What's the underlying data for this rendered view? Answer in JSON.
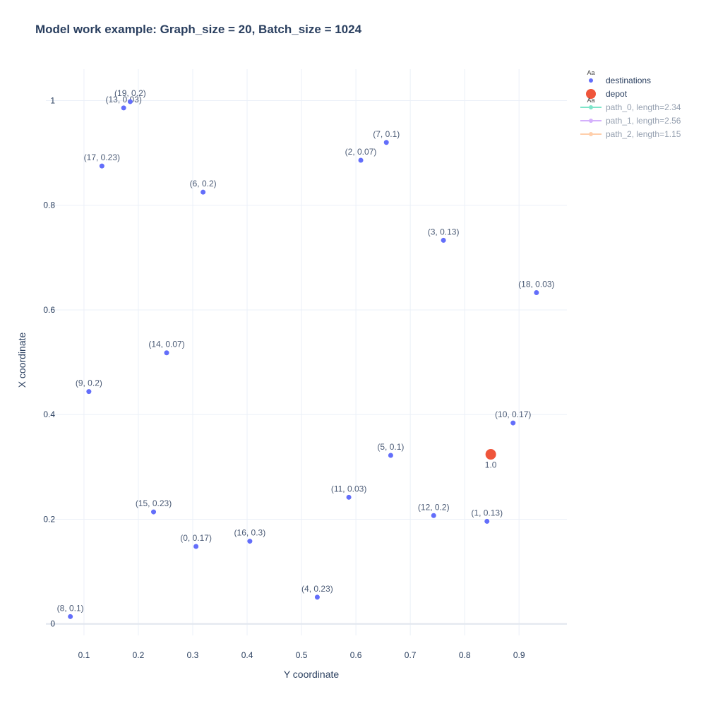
{
  "title": "Model work example: Graph_size = 20, Batch_size = 1024",
  "colors": {
    "destinations": "#636efa",
    "depot": "#ef553b",
    "path_0": "#00cc96",
    "path_1": "#ab63fa",
    "path_2": "#ffa15a",
    "grid": "#ebf0f8",
    "text": "#2a3f5f"
  },
  "chart_data": {
    "type": "scatter",
    "title": "Model work example: Graph_size = 20, Batch_size = 1024",
    "xlabel": "Y coordinate",
    "ylabel": "X coordinate",
    "xlim": [
      0.03,
      0.988
    ],
    "ylim": [
      -0.022,
      1.06
    ],
    "x_ticks": [
      0.1,
      0.2,
      0.3,
      0.4,
      0.5,
      0.6,
      0.7,
      0.8,
      0.9
    ],
    "x_tick_labels": [
      "0.1",
      "0.2",
      "0.3",
      "0.4",
      "0.5",
      "0.6",
      "0.7",
      "0.8",
      "0.9"
    ],
    "y_ticks": [
      0,
      0.2,
      0.4,
      0.6,
      0.8,
      1
    ],
    "y_tick_labels": [
      "0",
      "0.2",
      "0.4",
      "0.6",
      "0.8",
      "1"
    ],
    "grid": true,
    "legend_position": "top-right",
    "series": [
      {
        "name": "destinations",
        "points": [
          {
            "x": 0.306,
            "y": 0.148,
            "label": "(0, 0.17)"
          },
          {
            "x": 0.841,
            "y": 0.196,
            "label": "(1, 0.13)"
          },
          {
            "x": 0.609,
            "y": 0.886,
            "label": "(2, 0.07)"
          },
          {
            "x": 0.761,
            "y": 0.733,
            "label": "(3, 0.13)"
          },
          {
            "x": 0.529,
            "y": 0.051,
            "label": "(4, 0.23)"
          },
          {
            "x": 0.664,
            "y": 0.322,
            "label": "(5, 0.1)"
          },
          {
            "x": 0.319,
            "y": 0.825,
            "label": "(6, 0.2)"
          },
          {
            "x": 0.656,
            "y": 0.92,
            "label": "(7, 0.1)"
          },
          {
            "x": 0.075,
            "y": 0.014,
            "label": "(8, 0.1)"
          },
          {
            "x": 0.109,
            "y": 0.444,
            "label": "(9, 0.2)"
          },
          {
            "x": 0.889,
            "y": 0.384,
            "label": "(10, 0.17)"
          },
          {
            "x": 0.587,
            "y": 0.242,
            "label": "(11, 0.03)"
          },
          {
            "x": 0.743,
            "y": 0.207,
            "label": "(12, 0.2)"
          },
          {
            "x": 0.173,
            "y": 0.986,
            "label": "(13, 0.03)"
          },
          {
            "x": 0.252,
            "y": 0.518,
            "label": "(14, 0.07)"
          },
          {
            "x": 0.228,
            "y": 0.214,
            "label": "(15, 0.23)"
          },
          {
            "x": 0.405,
            "y": 0.158,
            "label": "(16, 0.3)"
          },
          {
            "x": 0.133,
            "y": 0.875,
            "label": "(17, 0.23)"
          },
          {
            "x": 0.932,
            "y": 0.633,
            "label": "(18, 0.03)"
          },
          {
            "x": 0.185,
            "y": 0.998,
            "label": "(19, 0.2)"
          }
        ]
      },
      {
        "name": "depot",
        "points": [
          {
            "x": 0.848,
            "y": 0.324,
            "label": "1.0"
          }
        ]
      }
    ],
    "legend": [
      {
        "key": "destinations",
        "name": "destinations",
        "marker": "dot",
        "visible": true
      },
      {
        "key": "depot",
        "name": "depot",
        "marker": "big-dot",
        "visible": true
      },
      {
        "key": "path_0",
        "name": "path_0, length=2.34",
        "marker": "line",
        "visible": false
      },
      {
        "key": "path_1",
        "name": "path_1, length=2.56",
        "marker": "line",
        "visible": false
      },
      {
        "key": "path_2",
        "name": "path_2, length=1.15",
        "marker": "line",
        "visible": false
      }
    ],
    "legend_marker_text": "Aa"
  }
}
